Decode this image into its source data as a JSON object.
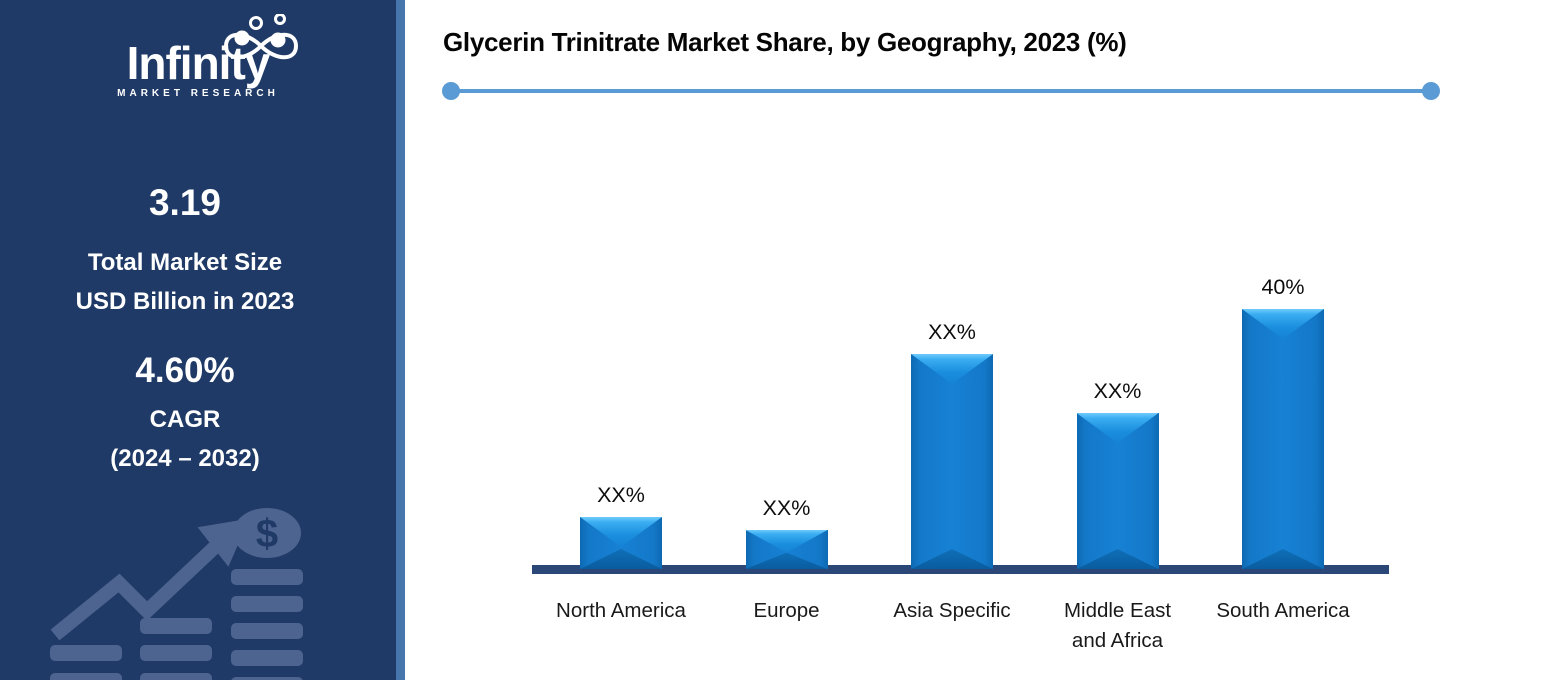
{
  "sidebar": {
    "brand_name": "Infinity",
    "brand_subtitle": "MARKET RESEARCH",
    "market_size_value": "3.19",
    "market_size_label_line1": "Total Market Size",
    "market_size_label_line2": "USD Billion in 2023",
    "cagr_value": "4.60%",
    "cagr_label": "CAGR",
    "cagr_period": "(2024 – 2032)",
    "colors": {
      "background": "#1F3A66",
      "accent_strip": "#4776AC",
      "decorative_icon": "#4E6490",
      "text": "#FFFFFF"
    }
  },
  "chart": {
    "title": "Glycerin Trinitrate Market Share, by Geography, 2023 (%)"
  },
  "chart_data": {
    "type": "bar",
    "title": "Glycerin Trinitrate Market Share, by Geography, 2023 (%)",
    "categories": [
      "North America",
      "Europe",
      "Asia Specific",
      "Middle East and Africa",
      "South America"
    ],
    "category_label_lines": [
      [
        "North America"
      ],
      [
        "Europe"
      ],
      [
        "Asia Specific"
      ],
      [
        "Middle East",
        "and Africa"
      ],
      [
        "South America"
      ]
    ],
    "value_labels": [
      "XX%",
      "XX%",
      "XX%",
      "XX%",
      "40%"
    ],
    "values_pct_estimated": [
      8,
      6,
      33,
      24,
      40
    ],
    "xlabel": "",
    "ylabel": "",
    "ylim": [
      0,
      45
    ],
    "grid": false,
    "legend": false,
    "axes_hidden": true,
    "bar_color": "#1278C9",
    "bar_highlight_color": "#55BDF8",
    "bar_shadow_color": "#0A5C9F",
    "baseline_color": "#2B4778",
    "divider_color": "#5B9BD5",
    "label_color": "#0D0D0D"
  }
}
